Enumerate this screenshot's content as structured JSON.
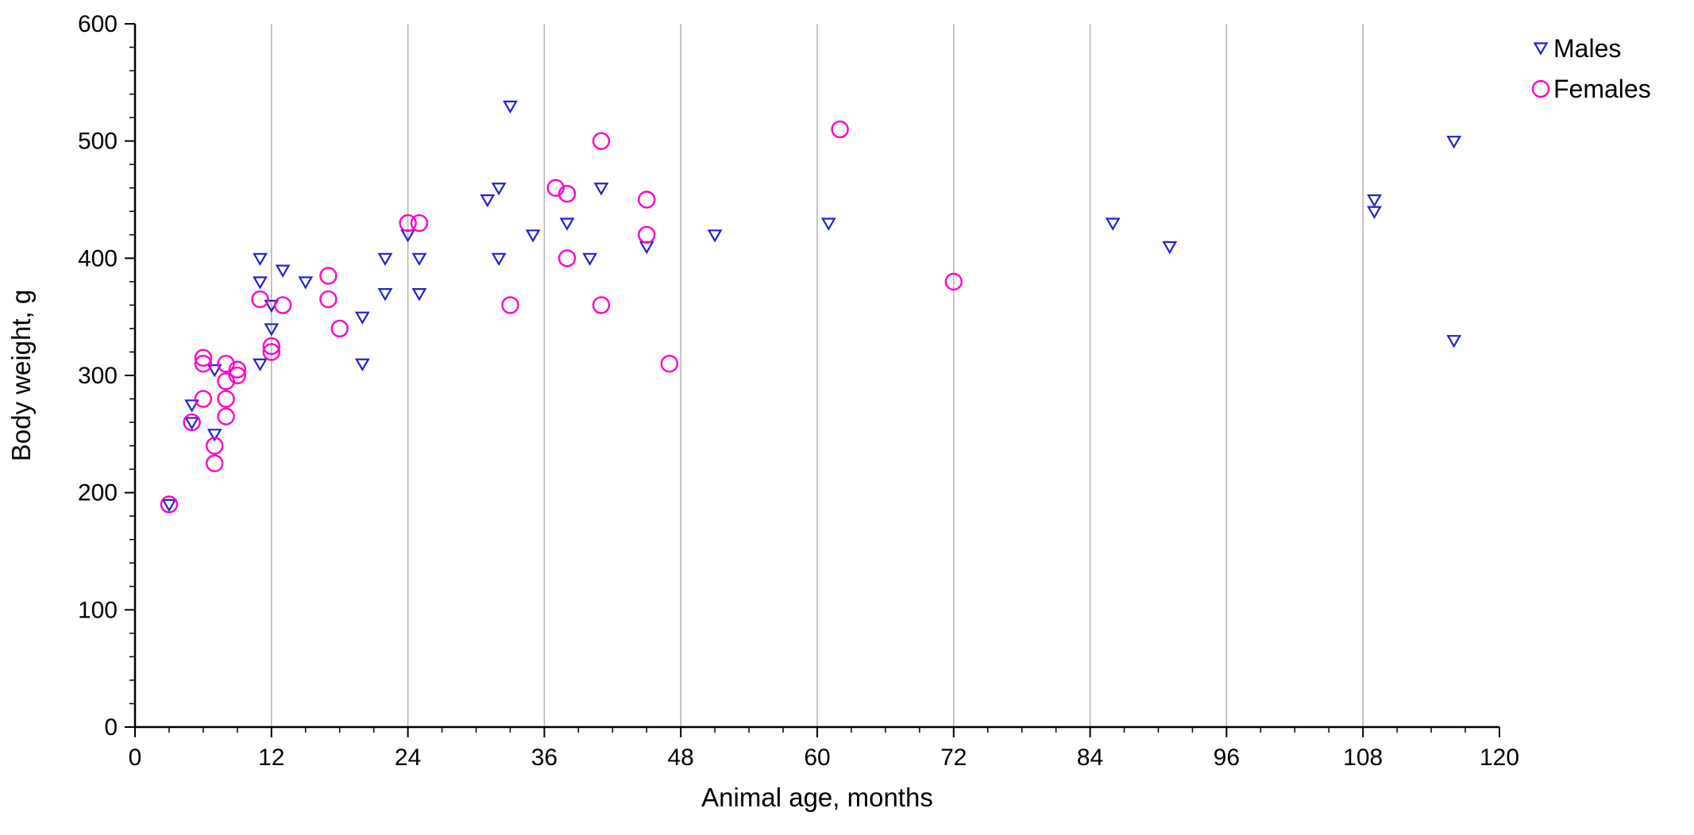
{
  "chart_data": {
    "type": "scatter",
    "title": "",
    "xlabel": "Animal age, months",
    "ylabel": "Body weight, g",
    "xlim": [
      0,
      120
    ],
    "ylim": [
      0,
      600
    ],
    "xticks": [
      0,
      12,
      24,
      36,
      48,
      60,
      72,
      84,
      96,
      108,
      120
    ],
    "yticks": [
      0,
      100,
      200,
      300,
      400,
      500,
      600
    ],
    "x_minor_step": 3,
    "y_minor_step": 20,
    "grid": "vertical-lines-at-x-major-ticks-12-to-108",
    "gridline_color": "#b3b3b3",
    "legend_position": "top-right-outside",
    "series": [
      {
        "name": "Males",
        "marker": "open-triangle-down",
        "color": "#2222cc",
        "points": [
          [
            3,
            190
          ],
          [
            5,
            275
          ],
          [
            5,
            260
          ],
          [
            7,
            305
          ],
          [
            7,
            250
          ],
          [
            11,
            400
          ],
          [
            11,
            380
          ],
          [
            11,
            310
          ],
          [
            12,
            360
          ],
          [
            12,
            340
          ],
          [
            13,
            390
          ],
          [
            15,
            380
          ],
          [
            20,
            350
          ],
          [
            20,
            310
          ],
          [
            22,
            370
          ],
          [
            22,
            400
          ],
          [
            24,
            420
          ],
          [
            25,
            400
          ],
          [
            25,
            370
          ],
          [
            31,
            450
          ],
          [
            32,
            460
          ],
          [
            32,
            400
          ],
          [
            33,
            530
          ],
          [
            35,
            420
          ],
          [
            38,
            430
          ],
          [
            40,
            400
          ],
          [
            41,
            460
          ],
          [
            45,
            410
          ],
          [
            51,
            420
          ],
          [
            61,
            430
          ],
          [
            86,
            430
          ],
          [
            91,
            410
          ],
          [
            109,
            450
          ],
          [
            109,
            440
          ],
          [
            116,
            500
          ],
          [
            116,
            330
          ]
        ]
      },
      {
        "name": "Females",
        "marker": "open-circle",
        "color": "#ff00cc",
        "points": [
          [
            3,
            190
          ],
          [
            5,
            260
          ],
          [
            6,
            315
          ],
          [
            6,
            310
          ],
          [
            6,
            280
          ],
          [
            7,
            240
          ],
          [
            7,
            225
          ],
          [
            8,
            265
          ],
          [
            8,
            280
          ],
          [
            8,
            310
          ],
          [
            8,
            295
          ],
          [
            9,
            300
          ],
          [
            9,
            305
          ],
          [
            11,
            365
          ],
          [
            12,
            320
          ],
          [
            12,
            325
          ],
          [
            13,
            360
          ],
          [
            17,
            385
          ],
          [
            17,
            365
          ],
          [
            18,
            340
          ],
          [
            24,
            430
          ],
          [
            25,
            430
          ],
          [
            33,
            360
          ],
          [
            37,
            460
          ],
          [
            38,
            455
          ],
          [
            38,
            400
          ],
          [
            41,
            500
          ],
          [
            41,
            360
          ],
          [
            45,
            450
          ],
          [
            45,
            420
          ],
          [
            47,
            310
          ],
          [
            62,
            510
          ],
          [
            72,
            380
          ]
        ]
      }
    ]
  }
}
